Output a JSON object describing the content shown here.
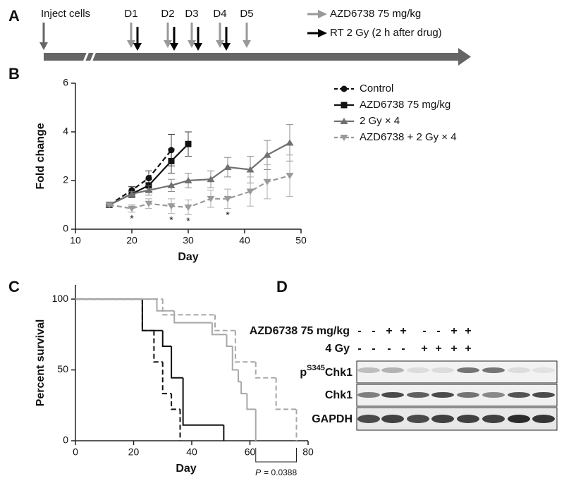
{
  "panel_labels": [
    "A",
    "B",
    "C",
    "D"
  ],
  "timeline": {
    "start_label": "Inject cells",
    "days": [
      "D1",
      "D2",
      "D3",
      "D4",
      "D5"
    ],
    "legend": [
      "AZD6738 75 mg/kg",
      "RT 2 Gy (2 h after drug)"
    ]
  },
  "chart_data": [
    {
      "type": "line",
      "x_label": "Day",
      "y_label": "Fold change",
      "xlim": [
        10,
        50
      ],
      "xticks": [
        10,
        20,
        30,
        40,
        50
      ],
      "ylim": [
        0,
        6
      ],
      "yticks": [
        0,
        2,
        4,
        6
      ],
      "legend": "right",
      "series": [
        {
          "name": "Control",
          "color": "#111111",
          "dashed": true,
          "marker": "circle",
          "x": [
            16,
            20,
            23,
            27
          ],
          "values": [
            1.0,
            1.6,
            2.1,
            3.25
          ],
          "errors": [
            0,
            0.15,
            0.3,
            0.65
          ]
        },
        {
          "name": "AZD6738 75 mg/kg",
          "color": "#111111",
          "dashed": false,
          "marker": "square",
          "x": [
            16,
            20,
            23,
            27,
            30
          ],
          "values": [
            1.0,
            1.45,
            1.8,
            2.8,
            3.5
          ],
          "errors": [
            0,
            0.15,
            0.25,
            0.5,
            0.5
          ]
        },
        {
          "name": "2 Gy × 4",
          "color": "#707070",
          "dashed": false,
          "marker": "triangle-up",
          "x": [
            16,
            20,
            23,
            27,
            30,
            34,
            37,
            41,
            44,
            48
          ],
          "values": [
            1.0,
            1.45,
            1.6,
            1.8,
            2.0,
            2.05,
            2.55,
            2.45,
            3.05,
            3.55
          ],
          "errors": [
            0,
            0.1,
            0.2,
            0.25,
            0.3,
            0.35,
            0.4,
            0.55,
            0.6,
            0.75
          ]
        },
        {
          "name": "AZD6738 + 2 Gy × 4",
          "color": "#9a9a9a",
          "dashed": true,
          "marker": "triangle-down",
          "x": [
            16,
            20,
            23,
            27,
            30,
            34,
            37,
            41,
            44,
            48
          ],
          "values": [
            1.0,
            0.85,
            1.05,
            0.95,
            0.9,
            1.25,
            1.25,
            1.55,
            1.95,
            2.2
          ],
          "errors": [
            0,
            0.15,
            0.2,
            0.3,
            0.3,
            0.35,
            0.4,
            0.6,
            0.7,
            0.85
          ]
        }
      ],
      "annotations": [
        {
          "x": 20,
          "text": "*"
        },
        {
          "x": 27,
          "text": "*"
        },
        {
          "x": 30,
          "text": "*"
        },
        {
          "x": 37,
          "text": "*"
        }
      ]
    },
    {
      "type": "step",
      "x_label": "Day",
      "y_label": "Percent survival",
      "xlim": [
        0,
        80
      ],
      "xticks": [
        0,
        20,
        40,
        60,
        80
      ],
      "ylim": [
        0,
        110
      ],
      "yticks": [
        0,
        50,
        100
      ],
      "series": [
        {
          "color": "#111111",
          "dashed": true,
          "x": [
            0,
            23,
            27,
            30,
            33,
            36
          ],
          "values": [
            100,
            77.8,
            55.6,
            33.3,
            22.2,
            0
          ]
        },
        {
          "color": "#111111",
          "dashed": false,
          "x": [
            0,
            23,
            30,
            33,
            37,
            51
          ],
          "values": [
            100,
            77.8,
            66.7,
            44.4,
            11.1,
            0
          ]
        },
        {
          "color": "#a8a8a8",
          "dashed": false,
          "x": [
            0,
            28,
            34,
            47,
            52,
            54,
            56,
            57,
            59,
            62
          ],
          "values": [
            100,
            91.7,
            83.3,
            75,
            66.7,
            50,
            41.7,
            33.3,
            22.2,
            0
          ]
        },
        {
          "color": "#a8a8a8",
          "dashed": true,
          "x": [
            0,
            30,
            48,
            55,
            62,
            69,
            76
          ],
          "values": [
            100,
            88.9,
            77.8,
            55.6,
            44.4,
            22.2,
            0
          ]
        }
      ],
      "annotation": {
        "variable": "P",
        "text": "= 0.0388",
        "x": [
          62,
          76
        ]
      }
    }
  ],
  "blot": {
    "conditions": [
      {
        "label": "AZD6738 75 mg/kg",
        "signs": [
          "-",
          "-",
          "+",
          "+",
          "-",
          "-",
          "+",
          "+"
        ]
      },
      {
        "label": "4 Gy",
        "signs": [
          "-",
          "-",
          "-",
          "-",
          "+",
          "+",
          "+",
          "+"
        ]
      }
    ],
    "rows": [
      {
        "prefix": "p",
        "superscript": "S345",
        "label": "Chk1"
      },
      {
        "label": "Chk1"
      },
      {
        "label": "GAPDH"
      }
    ]
  }
}
